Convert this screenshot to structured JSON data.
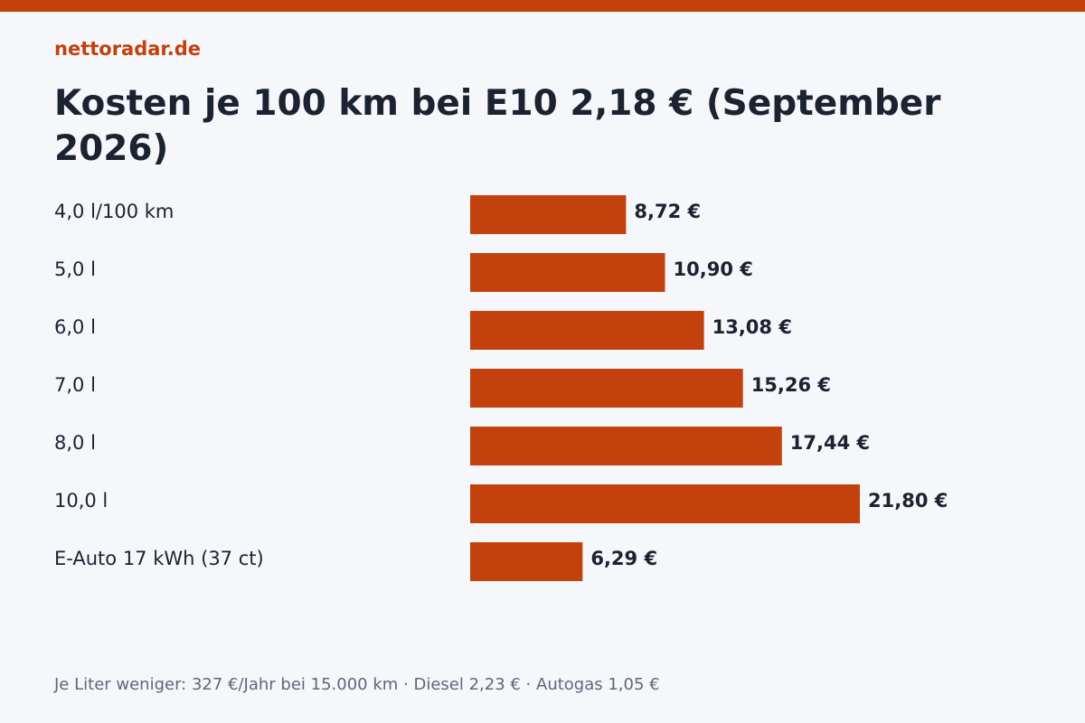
{
  "brand": "nettoradar.de",
  "colors": {
    "accent": "#c2410c",
    "text": "#1b2230",
    "muted": "#5c6878",
    "background": "#f6f7fb"
  },
  "chart_data": {
    "type": "bar",
    "orientation": "horizontal",
    "title": "Kosten je 100 km bei E10 2,18 € (September 2026)",
    "categories": [
      "4,0 l/100 km",
      "5,0 l",
      "6,0 l",
      "7,0 l",
      "8,0 l",
      "10,0 l",
      "E-Auto 17 kWh (37 ct)"
    ],
    "values": [
      8.72,
      10.9,
      13.08,
      15.26,
      17.44,
      21.8,
      6.29
    ],
    "value_labels": [
      "8,72 €",
      "10,90 €",
      "13,08 €",
      "15,26 €",
      "17,44 €",
      "21,80 €",
      "6,29 €"
    ],
    "xlabel": "",
    "ylabel": "",
    "xlim": [
      0,
      21.8
    ],
    "grid": false
  },
  "footnote": "Je Liter weniger: 327 €/Jahr bei 15.000 km · Diesel 2,23 € · Autogas 1,05 €"
}
